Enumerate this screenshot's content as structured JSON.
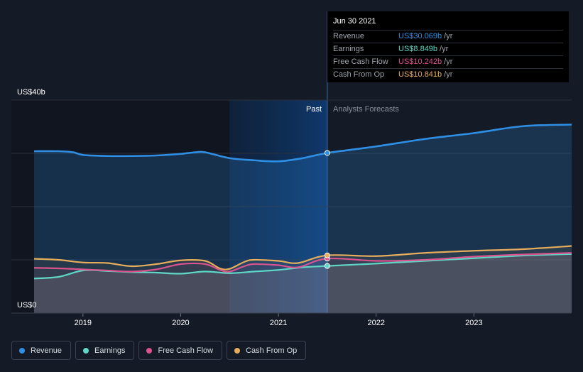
{
  "tooltip": {
    "date": "Jun 30 2021",
    "rows": [
      {
        "label": "Revenue",
        "value": "US$30.069b",
        "unit": "/yr",
        "color": "#2f8fe5"
      },
      {
        "label": "Earnings",
        "value": "US$8.849b",
        "unit": "/yr",
        "color": "#5fd6c6"
      },
      {
        "label": "Free Cash Flow",
        "value": "US$10.242b",
        "unit": "/yr",
        "color": "#d9548e"
      },
      {
        "label": "Cash From Op",
        "value": "US$10.841b",
        "unit": "/yr",
        "color": "#e6ad5c"
      }
    ]
  },
  "chart_data": {
    "type": "line",
    "ylabel_top": "US$40b",
    "ylabel_bottom": "US$0",
    "ylim": [
      0,
      40
    ],
    "xlim": [
      2018.5,
      2024.0
    ],
    "x_ticks": [
      2019,
      2020,
      2021,
      2022,
      2023
    ],
    "x_tick_labels": [
      "2019",
      "2020",
      "2021",
      "2022",
      "2023"
    ],
    "past_label": "Past",
    "forecast_label": "Analysts Forecasts",
    "split_x": 2021.5,
    "highlight_start": 2020.5,
    "grid": true,
    "series": [
      {
        "name": "Revenue",
        "color": "#2f8fe5",
        "x": [
          2018.5,
          2018.75,
          2018.9,
          2019.0,
          2019.25,
          2019.5,
          2019.75,
          2020.0,
          2020.15,
          2020.25,
          2020.5,
          2020.75,
          2021.0,
          2021.25,
          2021.5,
          2022.0,
          2022.5,
          2023.0,
          2023.5,
          2024.0
        ],
        "y": [
          30.4,
          30.4,
          30.2,
          29.7,
          29.5,
          29.5,
          29.6,
          29.9,
          30.2,
          30.2,
          29.1,
          28.7,
          28.5,
          29.1,
          30.069,
          31.3,
          32.7,
          33.8,
          35.1,
          35.4
        ]
      },
      {
        "name": "Earnings",
        "color": "#5fd6c6",
        "x": [
          2018.5,
          2018.75,
          2019.0,
          2019.25,
          2019.5,
          2019.75,
          2020.0,
          2020.25,
          2020.5,
          2020.75,
          2021.0,
          2021.25,
          2021.5,
          2022.0,
          2022.5,
          2023.0,
          2023.5,
          2024.0
        ],
        "y": [
          6.5,
          6.8,
          8.0,
          7.9,
          7.7,
          7.6,
          7.4,
          7.8,
          7.5,
          7.8,
          8.1,
          8.6,
          8.849,
          9.3,
          9.8,
          10.3,
          10.8,
          11.1
        ]
      },
      {
        "name": "Free Cash Flow",
        "color": "#d9548e",
        "x": [
          2018.5,
          2018.75,
          2019.0,
          2019.25,
          2019.5,
          2019.75,
          2020.0,
          2020.25,
          2020.4,
          2020.5,
          2020.65,
          2020.75,
          2021.0,
          2021.2,
          2021.5,
          2022.0,
          2022.5,
          2023.0,
          2023.5,
          2024.0
        ],
        "y": [
          8.5,
          8.4,
          8.2,
          8.0,
          7.8,
          8.2,
          9.2,
          9.2,
          8.1,
          7.8,
          8.8,
          9.2,
          9.0,
          8.6,
          10.242,
          9.8,
          10.0,
          10.6,
          11.0,
          11.3
        ]
      },
      {
        "name": "Cash From Op",
        "color": "#e6ad5c",
        "x": [
          2018.5,
          2018.75,
          2019.0,
          2019.25,
          2019.5,
          2019.75,
          2020.0,
          2020.25,
          2020.4,
          2020.5,
          2020.65,
          2020.75,
          2021.0,
          2021.2,
          2021.5,
          2022.0,
          2022.5,
          2023.0,
          2023.5,
          2024.0
        ],
        "y": [
          10.2,
          10.0,
          9.5,
          9.4,
          8.8,
          9.2,
          9.9,
          9.8,
          8.4,
          8.3,
          9.6,
          10.0,
          9.8,
          9.4,
          10.841,
          10.7,
          11.3,
          11.7,
          12.0,
          12.6
        ]
      }
    ]
  },
  "legend": [
    {
      "label": "Revenue",
      "color": "#2f8fe5"
    },
    {
      "label": "Earnings",
      "color": "#5fd6c6"
    },
    {
      "label": "Free Cash Flow",
      "color": "#d9548e"
    },
    {
      "label": "Cash From Op",
      "color": "#e6ad5c"
    }
  ]
}
